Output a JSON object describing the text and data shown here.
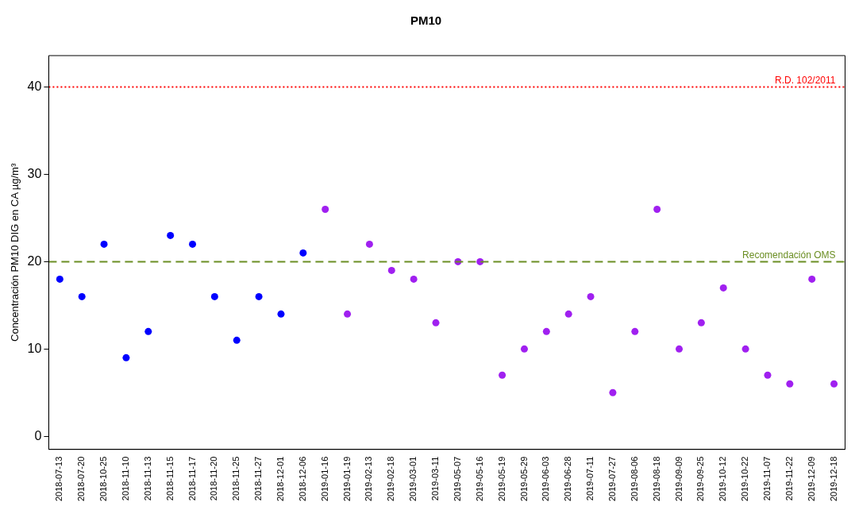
{
  "chart_data": {
    "type": "scatter",
    "title": "PM10",
    "ylabel": "Concentración PM10 DIG en CA µg/m³",
    "categories": [
      "2018-07-13",
      "2018-07-20",
      "2018-10-25",
      "2018-11-10",
      "2018-11-13",
      "2018-11-15",
      "2018-11-17",
      "2018-11-20",
      "2018-11-25",
      "2018-11-27",
      "2018-12-01",
      "2018-12-06",
      "2019-01-16",
      "2019-01-19",
      "2019-02-13",
      "2019-02-18",
      "2019-03-01",
      "2019-03-11",
      "2019-05-07",
      "2019-05-16",
      "2019-05-19",
      "2019-05-29",
      "2019-06-03",
      "2019-06-28",
      "2019-07-11",
      "2019-07-27",
      "2019-08-06",
      "2019-08-18",
      "2019-09-09",
      "2019-09-25",
      "2019-10-12",
      "2019-10-22",
      "2019-11-07",
      "2019-11-22",
      "2019-12-09",
      "2019-12-18"
    ],
    "series": [
      {
        "color": "#0000ff",
        "values": [
          18,
          16,
          22,
          9,
          12,
          23,
          22,
          16,
          11,
          16,
          14,
          21,
          null,
          null,
          null,
          null,
          null,
          null,
          null,
          null,
          null,
          null,
          null,
          null,
          null,
          null,
          null,
          null,
          null,
          null,
          null,
          null,
          null,
          null,
          null,
          null
        ]
      },
      {
        "color": "#a020f0",
        "values": [
          null,
          null,
          null,
          null,
          null,
          null,
          null,
          null,
          null,
          null,
          null,
          null,
          26,
          14,
          22,
          19,
          18,
          13,
          20,
          20,
          7,
          10,
          12,
          14,
          16,
          5,
          12,
          26,
          10,
          13,
          17,
          10,
          7,
          6,
          18,
          6
        ]
      }
    ],
    "ylim": [
      -1.5,
      43.6
    ],
    "yticks": [
      0,
      10,
      20,
      30,
      40
    ],
    "grid": false,
    "legend": false,
    "marker": "circle",
    "ref_lines": [
      {
        "axis": "y",
        "value": 40,
        "label": "R.D. 102/2011",
        "color": "#ff0000",
        "line_style": "dotted"
      },
      {
        "axis": "y",
        "value": 20,
        "label": "Recomendación OMS",
        "color": "#6b8e23",
        "line_style": "dashed"
      }
    ]
  }
}
